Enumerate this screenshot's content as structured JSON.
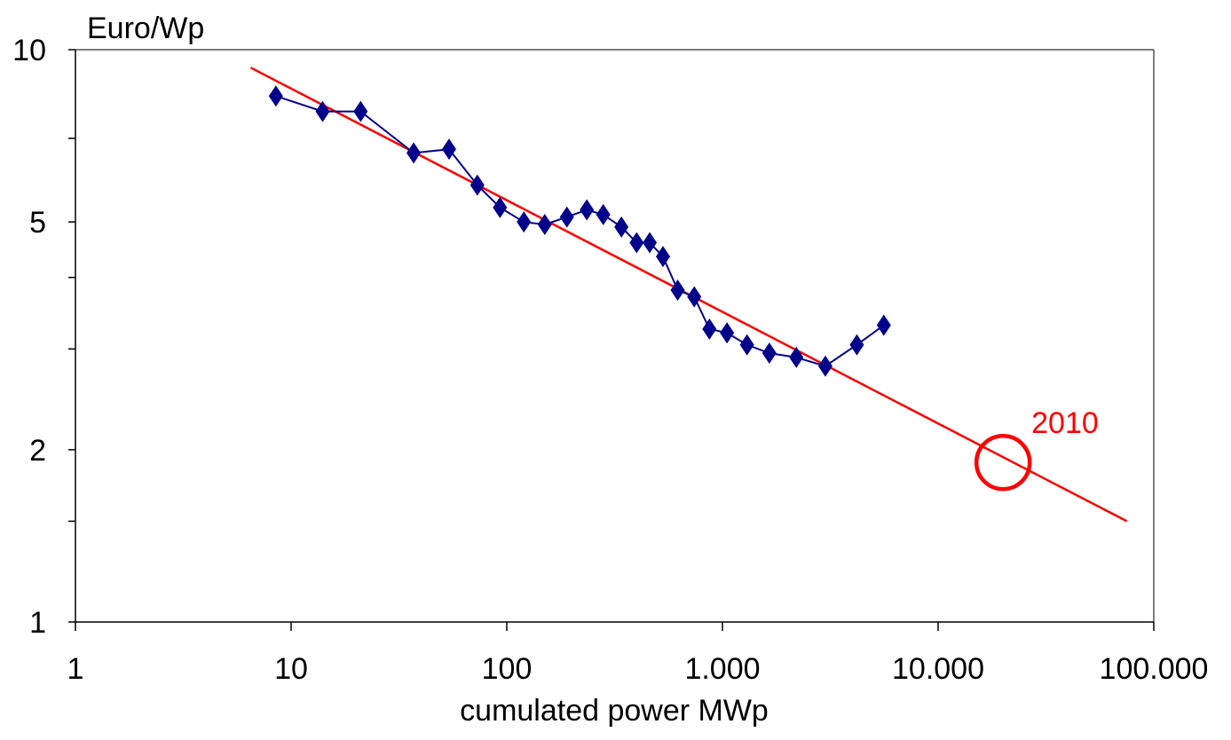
{
  "chart_data": {
    "type": "line",
    "ylabel": "Euro/Wp",
    "xlabel": "cumulated power MWp",
    "x_scale": "log",
    "y_scale": "log",
    "xlim": [
      1,
      100000
    ],
    "ylim": [
      1,
      10
    ],
    "x_ticks": [
      {
        "value": 1,
        "label": "1"
      },
      {
        "value": 10,
        "label": "10"
      },
      {
        "value": 100,
        "label": "100"
      },
      {
        "value": 1000,
        "label": "1.000"
      },
      {
        "value": 10000,
        "label": "10.000"
      },
      {
        "value": 100000,
        "label": "100.000"
      }
    ],
    "y_ticks": [
      {
        "value": 1,
        "label": "1"
      },
      {
        "value": 2,
        "label": "2"
      },
      {
        "value": 5,
        "label": "5"
      },
      {
        "value": 10,
        "label": "10"
      }
    ],
    "y_minor_ticks": [
      1.5,
      3,
      4,
      7
    ],
    "grid": false,
    "colors": {
      "series": "#00008B",
      "trend": "#FF0000",
      "annotation": "#FF0000",
      "axis": "#000000"
    },
    "series": [
      {
        "marker": "diamond",
        "x": [
          8.5,
          14,
          21,
          37,
          54,
          73,
          93,
          120,
          150,
          190,
          235,
          280,
          340,
          400,
          460,
          530,
          620,
          740,
          870,
          1050,
          1300,
          1650,
          2200,
          3000,
          4200,
          5600
        ],
        "y": [
          8.3,
          7.8,
          7.8,
          6.6,
          6.7,
          5.8,
          5.3,
          5.0,
          4.95,
          5.1,
          5.25,
          5.15,
          4.9,
          4.6,
          4.6,
          4.35,
          3.8,
          3.7,
          3.25,
          3.2,
          3.05,
          2.95,
          2.9,
          2.8,
          3.05,
          3.3
        ]
      }
    ],
    "trendline": {
      "x": [
        6.5,
        75000
      ],
      "y": [
        9.3,
        1.5
      ]
    },
    "annotations": [
      {
        "text": "2010",
        "x": 20000,
        "y": 1.9,
        "marker": "circle"
      }
    ]
  }
}
